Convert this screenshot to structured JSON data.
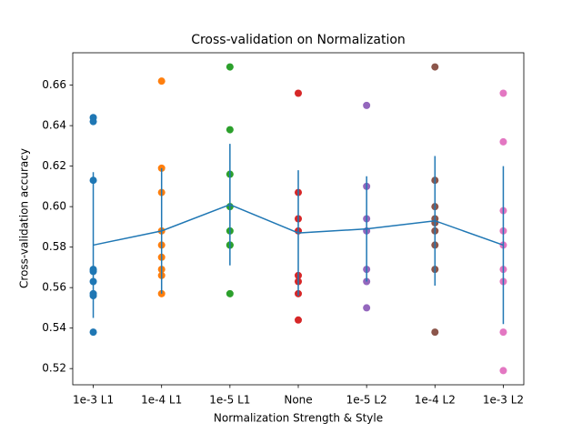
{
  "chart_data": {
    "type": "scatter",
    "title": "Cross-validation on Normalization",
    "xlabel": "Normalization Strength & Style",
    "ylabel": "Cross-validation accuracy",
    "categories": [
      "1e-3 L1",
      "1e-4 L1",
      "1e-5 L1",
      "None",
      "1e-5 L2",
      "1e-4 L2",
      "1e-3 L2"
    ],
    "point_colors": [
      "#1f77b4",
      "#ff7f0e",
      "#2ca02c",
      "#d62728",
      "#9467bd",
      "#8c564b",
      "#e377c2"
    ],
    "point_values": [
      [
        0.644,
        0.642,
        0.613,
        0.569,
        0.568,
        0.563,
        0.557,
        0.556,
        0.538
      ],
      [
        0.662,
        0.619,
        0.607,
        0.588,
        0.581,
        0.575,
        0.569,
        0.566,
        0.557
      ],
      [
        0.669,
        0.638,
        0.616,
        0.6,
        0.588,
        0.581,
        0.581,
        0.557
      ],
      [
        0.656,
        0.607,
        0.594,
        0.588,
        0.566,
        0.563,
        0.557,
        0.544
      ],
      [
        0.65,
        0.61,
        0.594,
        0.588,
        0.569,
        0.563,
        0.55
      ],
      [
        0.669,
        0.613,
        0.6,
        0.594,
        0.592,
        0.588,
        0.581,
        0.569,
        0.538
      ],
      [
        0.656,
        0.632,
        0.598,
        0.588,
        0.581,
        0.569,
        0.563,
        0.538,
        0.519
      ]
    ],
    "series": [
      {
        "color": "#1f77b4",
        "values": [
          0.581,
          0.588,
          0.601,
          0.587,
          0.589,
          0.593,
          0.581
        ],
        "errors": [
          0.036,
          0.031,
          0.03,
          0.031,
          0.026,
          0.032,
          0.039
        ]
      }
    ],
    "ylim": [
      0.512,
      0.676
    ],
    "yticks": [
      0.52,
      0.54,
      0.56,
      0.58,
      {
        "value": 0.6,
        "label": "0.60"
      },
      0.62,
      0.64,
      0.66
    ],
    "grid": false
  }
}
